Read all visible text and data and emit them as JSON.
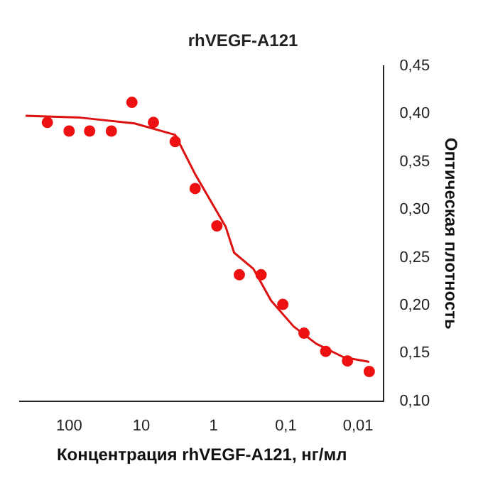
{
  "chart_data": {
    "type": "scatter",
    "title": "rhVEGF-A121",
    "xlabel": "Концентрация rhVEGF-A121, нг/мл",
    "ylabel": "Оптическая плотность",
    "log": "x",
    "grid": false,
    "legend": false,
    "xlim": [
      480,
      0.0044
    ],
    "xticks": [
      {
        "value": 100,
        "label": "100"
      },
      {
        "value": 10,
        "label": "10"
      },
      {
        "value": 1,
        "label": "1"
      },
      {
        "value": 0.1,
        "label": "0,1"
      },
      {
        "value": 0.01,
        "label": "0,01"
      }
    ],
    "ylim": [
      0.1,
      0.45
    ],
    "yticks": [
      {
        "value": 0.1,
        "label": "0,10"
      },
      {
        "value": 0.15,
        "label": "0,15"
      },
      {
        "value": 0.2,
        "label": "0,20"
      },
      {
        "value": 0.25,
        "label": "0,25"
      },
      {
        "value": 0.3,
        "label": "0,30"
      },
      {
        "value": 0.35,
        "label": "0,35"
      },
      {
        "value": 0.4,
        "label": "0,40"
      },
      {
        "value": 0.45,
        "label": "0,45"
      }
    ],
    "series": [
      {
        "color": "#ee1111",
        "marker": "circle",
        "x": [
          200,
          100,
          52,
          26,
          13.5,
          6.8,
          3.4,
          1.8,
          0.9,
          0.44,
          0.22,
          0.11,
          0.056,
          0.028,
          0.014,
          0.007
        ],
        "values": [
          0.391,
          0.382,
          0.382,
          0.382,
          0.412,
          0.391,
          0.371,
          0.322,
          0.283,
          0.232,
          0.232,
          0.201,
          0.171,
          0.152,
          0.142,
          0.131
        ]
      },
      {
        "type": "line",
        "color": "#dd1111",
        "marker": "none",
        "x": [
          400,
          70,
          12.4,
          3.4,
          1.8,
          0.68,
          0.52,
          0.28,
          0.16,
          0.078,
          0.038,
          0.016,
          0.007
        ],
        "values": [
          0.398,
          0.396,
          0.39,
          0.378,
          0.337,
          0.282,
          0.255,
          0.238,
          0.205,
          0.178,
          0.16,
          0.146,
          0.141
        ]
      }
    ]
  }
}
